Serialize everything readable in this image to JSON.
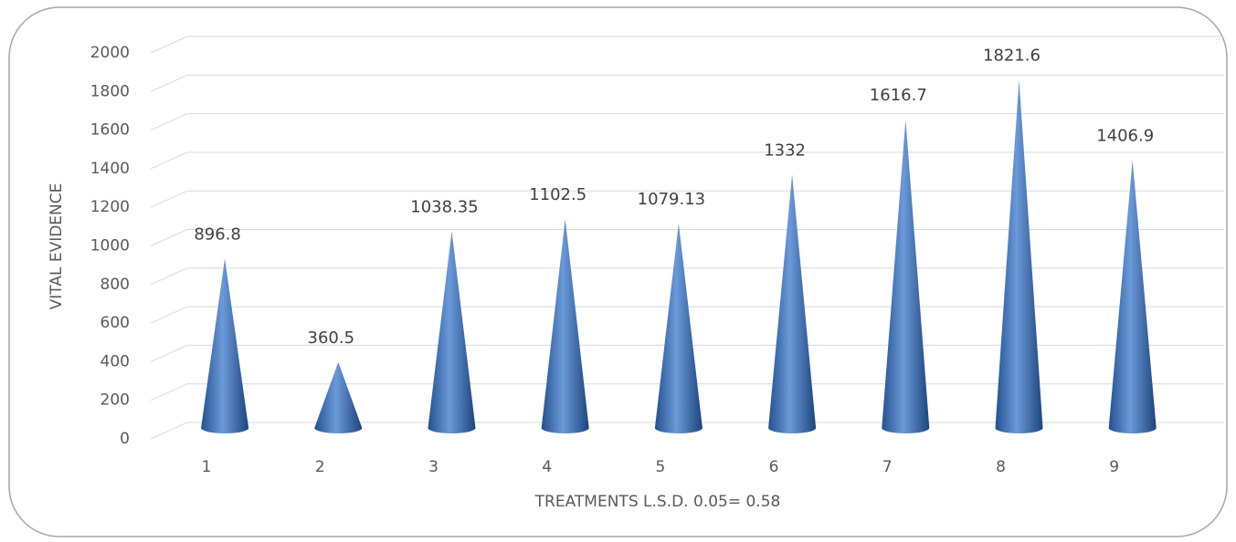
{
  "chart_data": {
    "type": "cone",
    "y_label": "VITAL EVIDENCE",
    "x_label": "TREATMENTS    L.S.D. 0.05= 0.58",
    "categories": [
      "1",
      "2",
      "3",
      "4",
      "5",
      "6",
      "7",
      "8",
      "9"
    ],
    "values": [
      896.8,
      360.5,
      1038.35,
      1102.5,
      1079.13,
      1332,
      1616.7,
      1821.6,
      1406.9
    ],
    "color": "#3f6fb5",
    "ylim": [
      0,
      2000
    ],
    "yticks": [
      0,
      200,
      400,
      600,
      800,
      1000,
      1200,
      1400,
      1600,
      1800,
      2000
    ],
    "grid": true
  }
}
